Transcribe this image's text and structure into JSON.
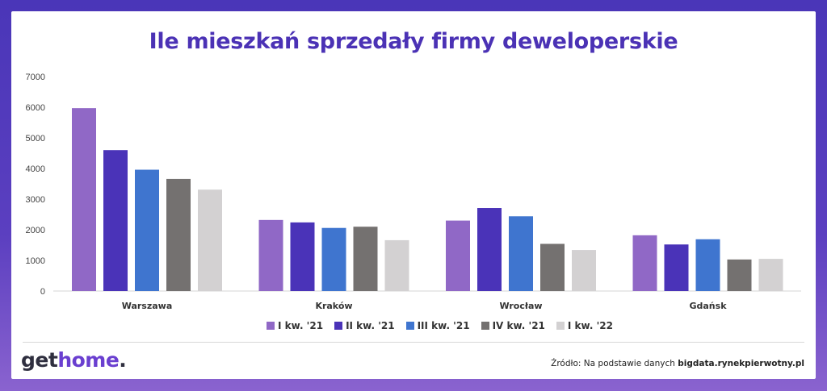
{
  "title": "Ile mieszkań sprzedały firmy deweloperskie",
  "colors": {
    "background": "#4a36b8",
    "title": "#4b32b5",
    "series": [
      "#9068c6",
      "#4a33b8",
      "#3f75cf",
      "#747170",
      "#d3d1d2"
    ]
  },
  "chart_data": {
    "type": "bar",
    "title": "Ile mieszkań sprzedały firmy deweloperskie",
    "xlabel": "",
    "ylabel": "",
    "ylim": [
      0,
      7000
    ],
    "yticks": [
      0,
      1000,
      2000,
      3000,
      4000,
      5000,
      6000,
      7000
    ],
    "grid": false,
    "legend_position": "bottom",
    "categories": [
      "Warszawa",
      "Kraków",
      "Wrocław",
      "Gdańsk"
    ],
    "series": [
      {
        "name": "I kw. '21",
        "values": [
          5970,
          2320,
          2300,
          1820
        ]
      },
      {
        "name": "II kw. '21",
        "values": [
          4600,
          2240,
          2710,
          1520
        ]
      },
      {
        "name": "III kw. '21",
        "values": [
          3960,
          2060,
          2440,
          1690
        ]
      },
      {
        "name": "IV kw. '21",
        "values": [
          3660,
          2100,
          1540,
          1030
        ]
      },
      {
        "name": "I kw. '22",
        "values": [
          3310,
          1660,
          1340,
          1050
        ]
      }
    ]
  },
  "footer": {
    "logo_part1": "get",
    "logo_part2": "home",
    "logo_part3": ".",
    "source_prefix": "Źródło: Na podstawie danych ",
    "source_bold": "bigdata.rynekpierwotny.pl"
  }
}
